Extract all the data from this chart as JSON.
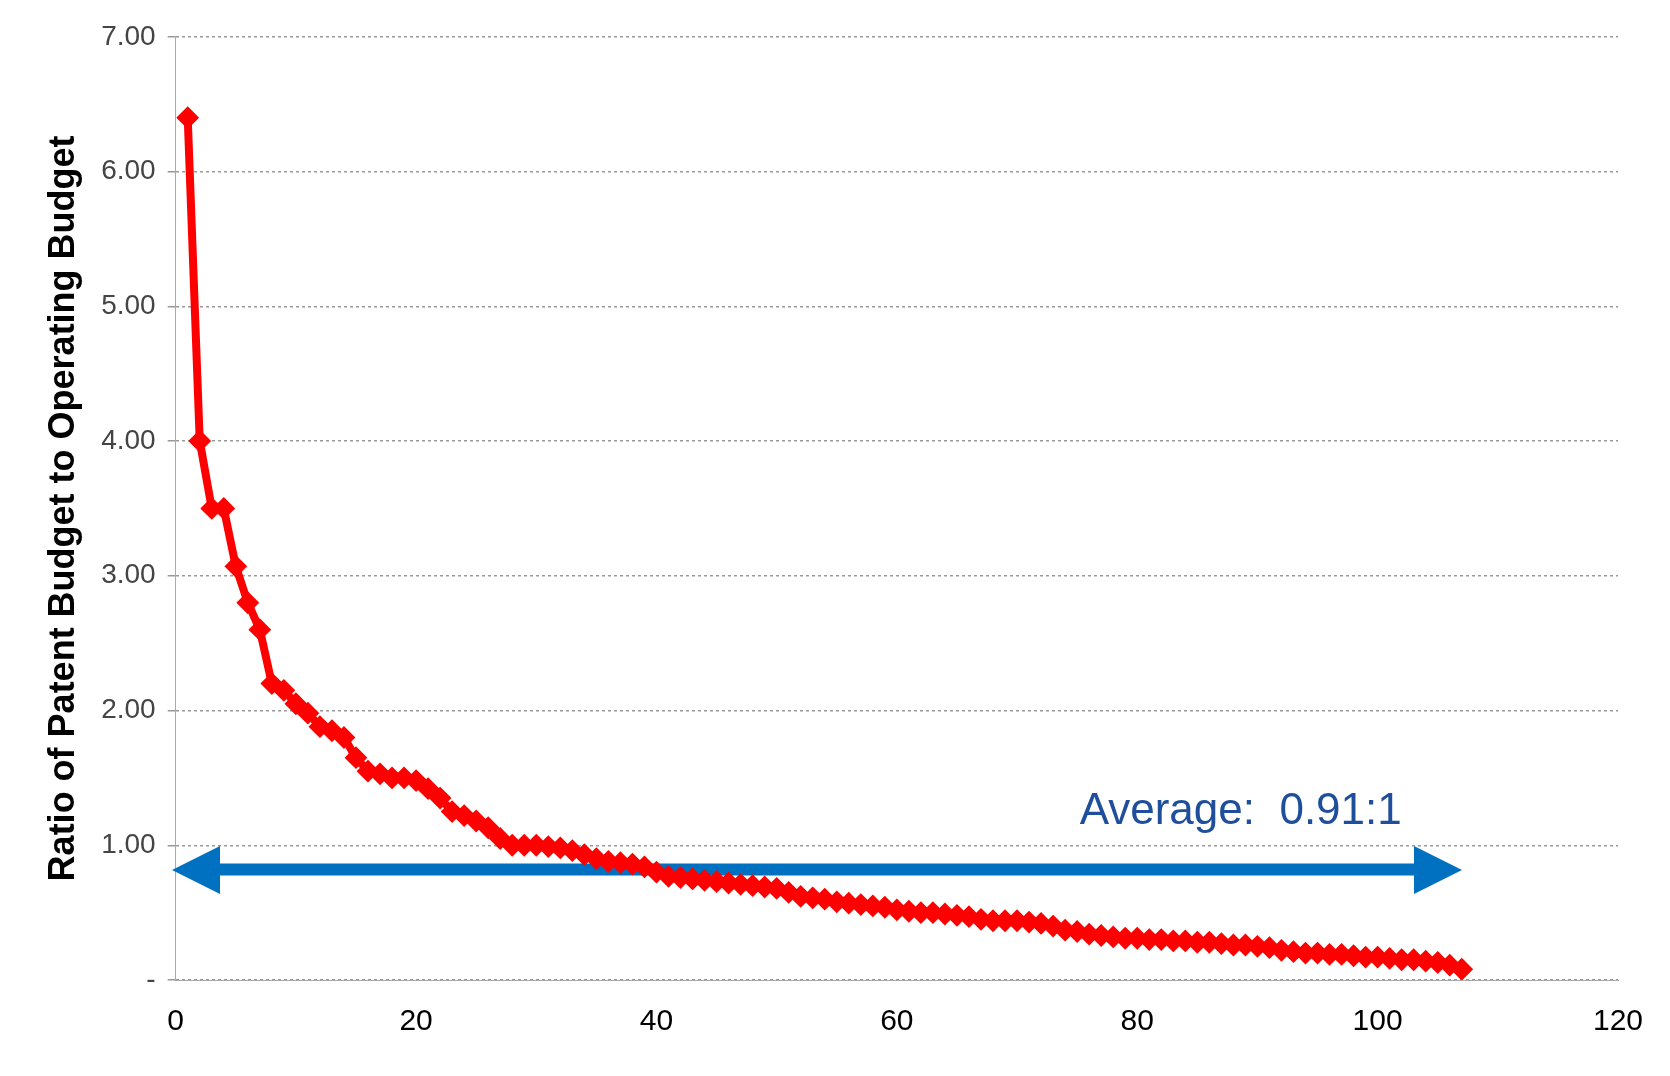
{
  "chart_data": {
    "type": "line",
    "ylabel": "Ratio of Patent Budget to Operating Budget",
    "x": [
      1,
      2,
      3,
      4,
      5,
      6,
      7,
      8,
      9,
      10,
      11,
      12,
      13,
      14,
      15,
      16,
      17,
      18,
      19,
      20,
      21,
      22,
      23,
      24,
      25,
      26,
      27,
      28,
      29,
      30,
      31,
      32,
      33,
      34,
      35,
      36,
      37,
      38,
      39,
      40,
      41,
      42,
      43,
      44,
      45,
      46,
      47,
      48,
      49,
      50,
      51,
      52,
      53,
      54,
      55,
      56,
      57,
      58,
      59,
      60,
      61,
      62,
      63,
      64,
      65,
      66,
      67,
      68,
      69,
      70,
      71,
      72,
      73,
      74,
      75,
      76,
      77,
      78,
      79,
      80,
      81,
      82,
      83,
      84,
      85,
      86,
      87,
      88,
      89,
      90,
      91,
      92,
      93,
      94,
      95,
      96,
      97,
      98,
      99,
      100,
      101,
      102,
      103,
      104,
      105,
      106,
      107
    ],
    "series": [
      {
        "color": "#ff0000",
        "values": [
          6.4,
          4.0,
          3.5,
          3.5,
          3.07,
          2.8,
          2.6,
          2.2,
          2.15,
          2.05,
          1.98,
          1.88,
          1.85,
          1.8,
          1.65,
          1.55,
          1.53,
          1.5,
          1.5,
          1.48,
          1.42,
          1.35,
          1.25,
          1.22,
          1.18,
          1.13,
          1.05,
          1.0,
          1.0,
          1.0,
          0.99,
          0.98,
          0.96,
          0.93,
          0.9,
          0.88,
          0.87,
          0.86,
          0.84,
          0.8,
          0.77,
          0.76,
          0.75,
          0.74,
          0.73,
          0.72,
          0.71,
          0.7,
          0.69,
          0.68,
          0.65,
          0.62,
          0.61,
          0.6,
          0.58,
          0.57,
          0.56,
          0.55,
          0.54,
          0.52,
          0.51,
          0.5,
          0.5,
          0.49,
          0.48,
          0.47,
          0.45,
          0.44,
          0.44,
          0.44,
          0.43,
          0.42,
          0.4,
          0.37,
          0.36,
          0.34,
          0.33,
          0.32,
          0.31,
          0.31,
          0.3,
          0.3,
          0.29,
          0.29,
          0.28,
          0.28,
          0.27,
          0.26,
          0.26,
          0.25,
          0.24,
          0.22,
          0.21,
          0.2,
          0.2,
          0.19,
          0.19,
          0.18,
          0.17,
          0.17,
          0.16,
          0.15,
          0.15,
          0.14,
          0.13,
          0.11,
          0.08
        ]
      }
    ],
    "xlim": [
      0,
      120
    ],
    "xticks": [
      0,
      20,
      40,
      60,
      80,
      100,
      120
    ],
    "ylim": [
      0,
      7
    ],
    "yticks": [
      {
        "value": 0,
        "label": "-"
      },
      {
        "value": 1,
        "label": "1.00"
      },
      {
        "value": 2,
        "label": "2.00"
      },
      {
        "value": 3,
        "label": "3.00"
      },
      {
        "value": 4,
        "label": "4.00"
      },
      {
        "value": 5,
        "label": "5.00"
      },
      {
        "value": 6,
        "label": "6.00"
      },
      {
        "value": 7,
        "label": "7.00"
      }
    ],
    "ref_lines": [
      {
        "axis": "y",
        "value": 0.82,
        "label": "Average:  0.91:1",
        "color": "#0070c0"
      }
    ],
    "grid": "y",
    "legend": false,
    "marker": "diamond",
    "line_style": "solid"
  }
}
